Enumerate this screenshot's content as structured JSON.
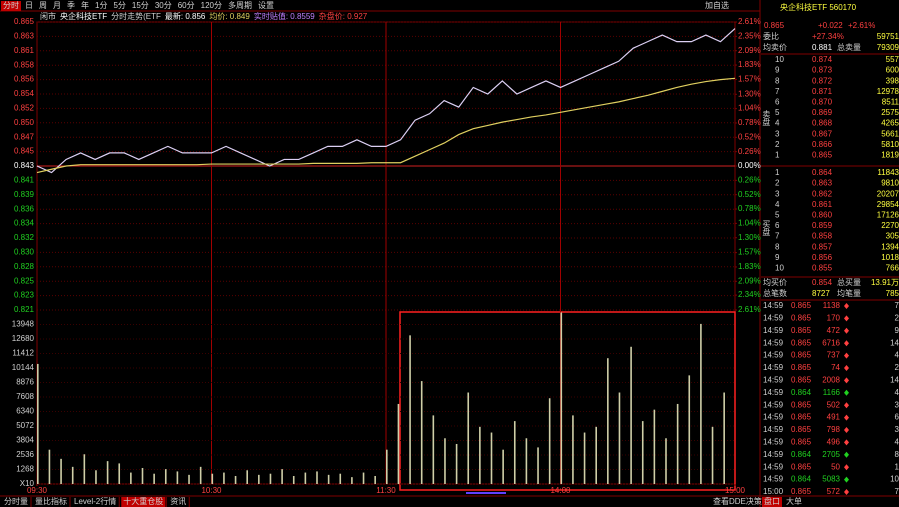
{
  "toolbar": {
    "tabs": [
      "分时",
      "日",
      "周",
      "月",
      "季",
      "年",
      "1分",
      "5分",
      "15分",
      "30分",
      "60分",
      "120分",
      "多周期",
      "设置"
    ],
    "add_watchlist": "加自选"
  },
  "info_bar": [
    "闲市",
    "央企科技ETF",
    "分时走势(ETF",
    "最新: 0.856",
    "均价: 0.849",
    "实时贴值: 0.8559",
    "杂盘价: 0.927"
  ],
  "chart_data": [
    {
      "type": "line",
      "x": [
        0,
        5,
        10,
        15,
        20,
        25,
        30,
        35,
        40,
        45,
        50,
        55,
        60,
        65,
        70,
        75,
        80,
        85,
        90,
        95,
        100,
        105,
        110,
        115,
        120,
        125,
        130,
        135,
        140,
        145,
        150,
        155,
        160,
        165,
        170,
        175,
        180,
        185,
        190,
        195,
        200,
        205,
        210,
        215,
        220,
        225,
        230,
        235,
        240
      ],
      "xlim": [
        0,
        240
      ],
      "xticks": [
        {
          "value": 0,
          "label": "09:30"
        },
        {
          "value": 60,
          "label": "10:30"
        },
        {
          "value": 120,
          "label": "11:30"
        },
        {
          "value": 180,
          "label": "14:00"
        },
        {
          "value": 240,
          "label": "15:00"
        }
      ],
      "ylim": [
        0.821,
        0.865
      ],
      "yticks": [
        {
          "value": 0.865,
          "label": "0.865"
        },
        {
          "value": 0.8628,
          "label": "0.863"
        },
        {
          "value": 0.8606,
          "label": "0.861"
        },
        {
          "value": 0.8584,
          "label": "0.858"
        },
        {
          "value": 0.8562,
          "label": "0.856"
        },
        {
          "value": 0.854,
          "label": "0.854"
        },
        {
          "value": 0.8518,
          "label": "0.852"
        },
        {
          "value": 0.8496,
          "label": "0.850"
        },
        {
          "value": 0.8474,
          "label": "0.847"
        },
        {
          "value": 0.8452,
          "label": "0.845"
        },
        {
          "value": 0.843,
          "label": "0.843"
        },
        {
          "value": 0.8408,
          "label": "0.841"
        },
        {
          "value": 0.8386,
          "label": "0.839"
        },
        {
          "value": 0.8364,
          "label": "0.836"
        },
        {
          "value": 0.8342,
          "label": "0.834"
        },
        {
          "value": 0.832,
          "label": "0.832"
        },
        {
          "value": 0.8298,
          "label": "0.830"
        },
        {
          "value": 0.8276,
          "label": "0.828"
        },
        {
          "value": 0.8254,
          "label": "0.825"
        },
        {
          "value": 0.8232,
          "label": "0.823"
        },
        {
          "value": 0.821,
          "label": "0.821"
        }
      ],
      "y2lim": [
        -2.61,
        2.61
      ],
      "y2ticks": [
        {
          "value": 2.61,
          "label": "2.61%"
        },
        {
          "value": 2.35,
          "label": "2.35%"
        },
        {
          "value": 2.09,
          "label": "2.09%"
        },
        {
          "value": 1.83,
          "label": "1.83%"
        },
        {
          "value": 1.57,
          "label": "1.57%"
        },
        {
          "value": 1.3,
          "label": "1.30%"
        },
        {
          "value": 1.04,
          "label": "1.04%"
        },
        {
          "value": 0.78,
          "label": "0.78%"
        },
        {
          "value": 0.52,
          "label": "0.52%"
        },
        {
          "value": 0.26,
          "label": "0.26%"
        },
        {
          "value": 0,
          "label": "0.00%"
        },
        {
          "value": -0.26,
          "label": "0.26%"
        },
        {
          "value": -0.52,
          "label": "0.52%"
        },
        {
          "value": -0.78,
          "label": "0.78%"
        },
        {
          "value": -1.04,
          "label": "1.04%"
        },
        {
          "value": -1.3,
          "label": "1.30%"
        },
        {
          "value": -1.57,
          "label": "1.57%"
        },
        {
          "value": -1.83,
          "label": "1.83%"
        },
        {
          "value": -2.09,
          "label": "2.09%"
        },
        {
          "value": -2.34,
          "label": "2.34%"
        },
        {
          "value": -2.61,
          "label": "2.61%"
        }
      ],
      "grid": true,
      "series": [
        {
          "color": "#dcd0f4",
          "values": [
            0.843,
            0.842,
            0.844,
            0.845,
            0.844,
            0.845,
            0.845,
            0.844,
            0.845,
            0.846,
            0.845,
            0.845,
            0.845,
            0.846,
            0.845,
            0.844,
            0.843,
            0.844,
            0.844,
            0.845,
            0.846,
            0.846,
            0.847,
            0.846,
            0.846,
            0.847,
            0.85,
            0.851,
            0.853,
            0.852,
            0.855,
            0.854,
            0.856,
            0.854,
            0.855,
            0.856,
            0.855,
            0.856,
            0.857,
            0.858,
            0.859,
            0.861,
            0.862,
            0.863,
            0.862,
            0.862,
            0.863,
            0.862,
            0.864
          ]
        },
        {
          "color": "#e0d060",
          "values": [
            0.842,
            0.8425,
            0.843,
            0.8432,
            0.8432,
            0.8432,
            0.8432,
            0.8432,
            0.8432,
            0.8432,
            0.8432,
            0.8432,
            0.8433,
            0.8433,
            0.8433,
            0.8433,
            0.8433,
            0.8433,
            0.8433,
            0.8434,
            0.8434,
            0.8434,
            0.8434,
            0.8435,
            0.8435,
            0.8435,
            0.8445,
            0.8455,
            0.8465,
            0.8478,
            0.8487,
            0.8492,
            0.8497,
            0.8501,
            0.8505,
            0.8508,
            0.8512,
            0.8516,
            0.852,
            0.8524,
            0.8528,
            0.8533,
            0.8538,
            0.8544,
            0.855,
            0.8555,
            0.8559,
            0.8562,
            0.8564
          ]
        }
      ]
    },
    {
      "type": "bar",
      "x": [
        0,
        4,
        8,
        12,
        16,
        20,
        24,
        28,
        32,
        36,
        40,
        44,
        48,
        52,
        56,
        60,
        64,
        68,
        72,
        76,
        80,
        84,
        88,
        92,
        96,
        100,
        104,
        108,
        112,
        116,
        120,
        124,
        128,
        132,
        136,
        140,
        144,
        148,
        152,
        156,
        160,
        164,
        168,
        172,
        176,
        180,
        184,
        188,
        192,
        196,
        200,
        204,
        208,
        212,
        216,
        220,
        224,
        228,
        232,
        236
      ],
      "xlim": [
        0,
        240
      ],
      "values": [
        10500,
        3000,
        2200,
        1500,
        2600,
        1200,
        2000,
        1800,
        1000,
        1400,
        900,
        1300,
        1100,
        800,
        1500,
        900,
        1000,
        700,
        1200,
        800,
        900,
        1300,
        700,
        1000,
        1100,
        800,
        900,
        600,
        1000,
        700,
        3000,
        7000,
        13000,
        9000,
        6000,
        4000,
        3500,
        8000,
        5000,
        4500,
        3000,
        5500,
        4000,
        3200,
        7500,
        15000,
        6000,
        4500,
        5000,
        11000,
        8000,
        12000,
        5500,
        6500,
        4000,
        7000,
        9500,
        14000,
        5000,
        8000
      ],
      "color": "#cfcfa8",
      "ylim": [
        0,
        15216
      ],
      "yticks": [
        {
          "value": 0,
          "label": "X10"
        },
        1268,
        2536,
        3804,
        5072,
        6340,
        7608,
        8876,
        10144,
        11412,
        12680,
        13948
      ]
    }
  ],
  "quote_panel": {
    "title": "央企科技ETF 560170",
    "price": "0.865",
    "change": "+0.022",
    "change_pct": "+2.61%",
    "ratio_label": "委比",
    "ratio": "+27.34%",
    "ratio_diff": "59751",
    "avg_sell_label": "均卖价",
    "avg_sell": "0.881",
    "total_sell_label": "总卖量",
    "total_sell": "79309",
    "sell_label": "卖盘",
    "sell": [
      [
        "10",
        "0.874",
        "557"
      ],
      [
        "9",
        "0.873",
        "600"
      ],
      [
        "8",
        "0.872",
        "398"
      ],
      [
        "7",
        "0.871",
        "12978"
      ],
      [
        "6",
        "0.870",
        "8511"
      ],
      [
        "5",
        "0.869",
        "2575"
      ],
      [
        "4",
        "0.868",
        "4265"
      ],
      [
        "3",
        "0.867",
        "5661"
      ],
      [
        "2",
        "0.866",
        "5810"
      ],
      [
        "1",
        "0.865",
        "1819"
      ]
    ],
    "buy_label": "买盘",
    "buy": [
      [
        "1",
        "0.864",
        "11843"
      ],
      [
        "2",
        "0.863",
        "9810"
      ],
      [
        "3",
        "0.862",
        "20207"
      ],
      [
        "4",
        "0.861",
        "29854"
      ],
      [
        "5",
        "0.860",
        "17126"
      ],
      [
        "6",
        "0.859",
        "2270"
      ],
      [
        "7",
        "0.858",
        "305"
      ],
      [
        "8",
        "0.857",
        "1394"
      ],
      [
        "9",
        "0.856",
        "1018"
      ],
      [
        "10",
        "0.855",
        "766"
      ]
    ],
    "avg_buy_label": "均买价",
    "avg_buy": "0.854",
    "total_buy_label": "总买量",
    "total_buy": "13.91万",
    "count_label": "总笔数",
    "count": "8727",
    "avg_lot_label": "均笔量",
    "avg_lot": "785",
    "ticks": [
      [
        "14:59",
        "0.865",
        "1138",
        "7"
      ],
      [
        "14:59",
        "0.865",
        "170",
        "2"
      ],
      [
        "14:59",
        "0.865",
        "472",
        "9"
      ],
      [
        "14:59",
        "0.865",
        "6716",
        "14"
      ],
      [
        "14:59",
        "0.865",
        "737",
        "4"
      ],
      [
        "14:59",
        "0.865",
        "74",
        "2"
      ],
      [
        "14:59",
        "0.865",
        "2008",
        "14"
      ],
      [
        "14:59",
        "0.864",
        "1166",
        "4"
      ],
      [
        "14:59",
        "0.865",
        "502",
        "3"
      ],
      [
        "14:59",
        "0.865",
        "491",
        "6"
      ],
      [
        "14:59",
        "0.865",
        "798",
        "3"
      ],
      [
        "14:59",
        "0.865",
        "496",
        "4"
      ],
      [
        "14:59",
        "0.864",
        "2705",
        "8"
      ],
      [
        "14:59",
        "0.865",
        "50",
        "1"
      ],
      [
        "14:59",
        "0.864",
        "5083",
        "10"
      ],
      [
        "15:00",
        "0.865",
        "572",
        "7"
      ]
    ],
    "directions": [
      "up",
      "up",
      "up",
      "up",
      "up",
      "up",
      "up",
      "down",
      "up",
      "up",
      "up",
      "up",
      "down",
      "up",
      "down",
      "up"
    ]
  },
  "bottom_tabs": [
    "分时量",
    "量比指标",
    "Level-2行情",
    "十大重仓股",
    "资讯"
  ],
  "bottom_right_tabs": [
    "查看DDE决策",
    "盘口",
    "大单"
  ]
}
